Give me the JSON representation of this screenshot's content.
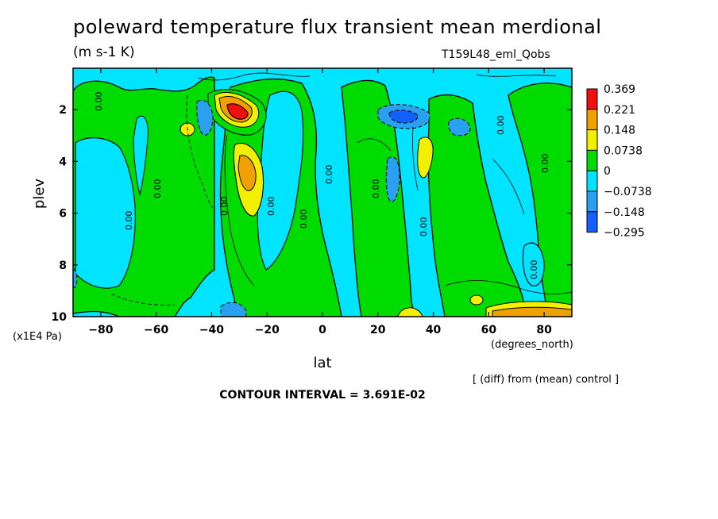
{
  "chart_data": {
    "type": "heatmap",
    "title": "poleward temperature flux transient mean merdional",
    "units": "(m s-1 K)",
    "run_label": "T159L48_eml_Qobs",
    "xlabel": "lat",
    "x_unit": "(degrees_north)",
    "ylabel": "plev",
    "y_unit": "(x1E4 Pa)",
    "xlim": [
      -90,
      90
    ],
    "ylim": [
      10,
      0.4
    ],
    "x_ticks": [
      -80,
      -60,
      -40,
      -20,
      0,
      20,
      40,
      60,
      80
    ],
    "y_ticks": [
      2,
      4,
      6,
      8,
      10
    ],
    "y_tick_labels": [
      "2",
      "4",
      "6",
      "8",
      "10"
    ],
    "x_tick_labels": [
      "−80",
      "−60",
      "−40",
      "−20",
      "0",
      "20",
      "40",
      "60",
      "80"
    ],
    "contour_interval_text": "CONTOUR INTERVAL = 3.691E-02",
    "note": "[ (diff) from (mean) control ]",
    "contour_zero_label": "0.00",
    "legend": {
      "labels": [
        "0.369",
        "0.221",
        "0.148",
        "0.0738",
        "0",
        "−0.0738",
        "−0.148",
        "−0.295"
      ],
      "colors": [
        "#f01010",
        "#f0a000",
        "#f0f000",
        "#00dc00",
        "#00e4ff",
        "#2aa0f0",
        "#1460ff"
      ]
    },
    "features": [
      {
        "lat": -30,
        "plev": 2.0,
        "value": 0.369,
        "sign": "positive"
      },
      {
        "lat": -31,
        "plev": 4.0,
        "value": 0.148,
        "sign": "positive"
      },
      {
        "lat": -50,
        "plev": 2.5,
        "value": 0.0738,
        "sign": "positive"
      },
      {
        "lat": 37,
        "plev": 3.3,
        "value": 0.0738,
        "sign": "positive"
      },
      {
        "lat": 80,
        "plev": 9.8,
        "value": 0.0738,
        "sign": "positive"
      },
      {
        "lat": 30,
        "plev": 2.0,
        "value": -0.148,
        "sign": "negative"
      },
      {
        "lat": -42,
        "plev": 2.2,
        "value": -0.148,
        "sign": "negative"
      },
      {
        "lat": 27,
        "plev": 4.4,
        "value": -0.148,
        "sign": "negative"
      },
      {
        "lat": 50,
        "plev": 2.4,
        "value": -0.148,
        "sign": "negative"
      },
      {
        "lat": -35,
        "plev": 9.9,
        "value": -0.148,
        "sign": "negative"
      }
    ]
  }
}
